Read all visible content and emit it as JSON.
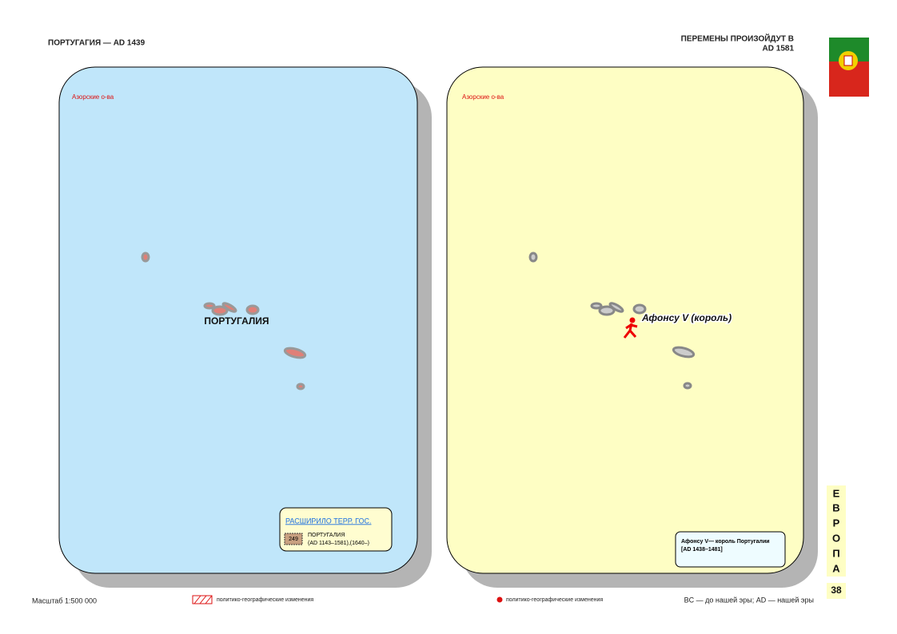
{
  "header": {
    "title": "ПОРТУГАГИЯ — AD 1439",
    "changes": [
      "ПЕРЕМЕНЫ ПРОИЗОЙДУТ В",
      "AD 1581"
    ]
  },
  "left_map": {
    "region_label": "Азорские о-ва",
    "country_label": "ПОРТУГАЛИЯ",
    "legend": {
      "heading": "РАСШИРИЛО ТЕРР. ГОС.",
      "badge": "249",
      "name": "ПОРТУГАЛИЯ",
      "dates": "(AD 1143–1581),(1640–)"
    }
  },
  "right_map": {
    "region_label": "Азорские о-ва",
    "ruler_label": "Афонсу V (король)",
    "note": [
      "Афонсу V— король Португалии",
      "[AD 1438–1481]"
    ]
  },
  "side": {
    "letters": [
      "Е",
      "В",
      "Р",
      "О",
      "П",
      "А"
    ],
    "page": "38"
  },
  "footer": {
    "scale": "Масштаб 1:500 000",
    "legend_left": "политико-географические изменения",
    "legend_right": "политико-географические изменения",
    "eras": "BC — до нашей эры; AD — нашей эры"
  }
}
